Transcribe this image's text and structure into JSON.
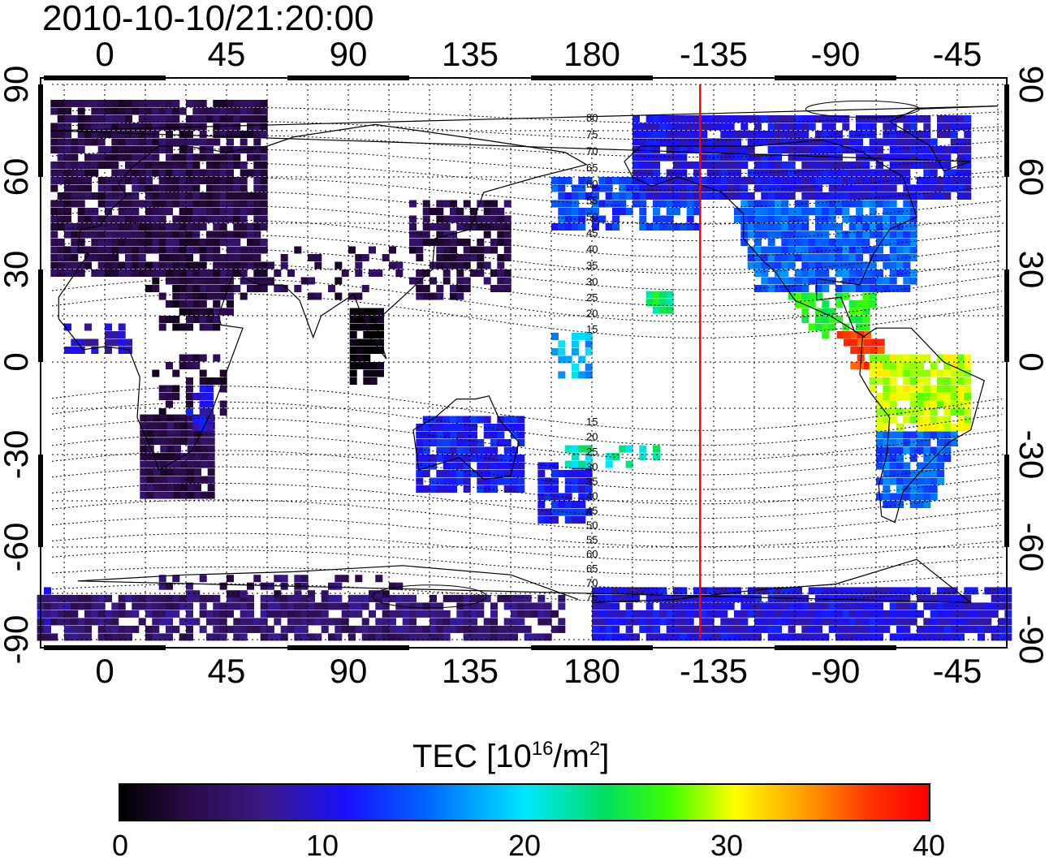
{
  "timestamp": "2010-10-10/21:20:00",
  "top_axis_labels": [
    "0",
    "45",
    "90",
    "135",
    "180",
    "-135",
    "-90",
    "-45"
  ],
  "bottom_axis_labels": [
    "0",
    "45",
    "90",
    "135",
    "180",
    "-135",
    "-90",
    "-45"
  ],
  "left_axis_labels": [
    "90",
    "60",
    "30",
    "0",
    "-30",
    "-60",
    "-90"
  ],
  "right_axis_labels": [
    "90",
    "60",
    "30",
    "0",
    "-30",
    "-60",
    "-90"
  ],
  "longitude_ticks_deg": [
    0,
    45,
    90,
    135,
    180,
    -135,
    -90,
    -45
  ],
  "latitude_ticks_deg": [
    90,
    60,
    30,
    0,
    -30,
    -60,
    -90
  ],
  "contour_labels": [
    "80",
    "75",
    "70",
    "65",
    "60",
    "55",
    "50",
    "45",
    "40",
    "35",
    "30",
    "25",
    "20",
    "15",
    "15",
    "20",
    "25",
    "30",
    "35",
    "40",
    "45",
    "50",
    "55",
    "60",
    "65",
    "70",
    "75"
  ],
  "meridian_marker": {
    "longitude_deg": -140,
    "color": "#ff0000"
  },
  "colorbar": {
    "title": "TEC  [10",
    "title_exp": "16",
    "title_unit": "/m",
    "title_unit_exp": "2",
    "title_close": "]",
    "min": 0,
    "max": 40,
    "tick_labels": [
      "0",
      "10",
      "20",
      "30",
      "40"
    ],
    "colors": [
      "#000000",
      "#2a0a44",
      "#3a1a88",
      "#1a10ff",
      "#0066ff",
      "#00e6ff",
      "#00e060",
      "#40ff00",
      "#ffff00",
      "#ff9900",
      "#ff3000",
      "#ff0000"
    ]
  }
}
